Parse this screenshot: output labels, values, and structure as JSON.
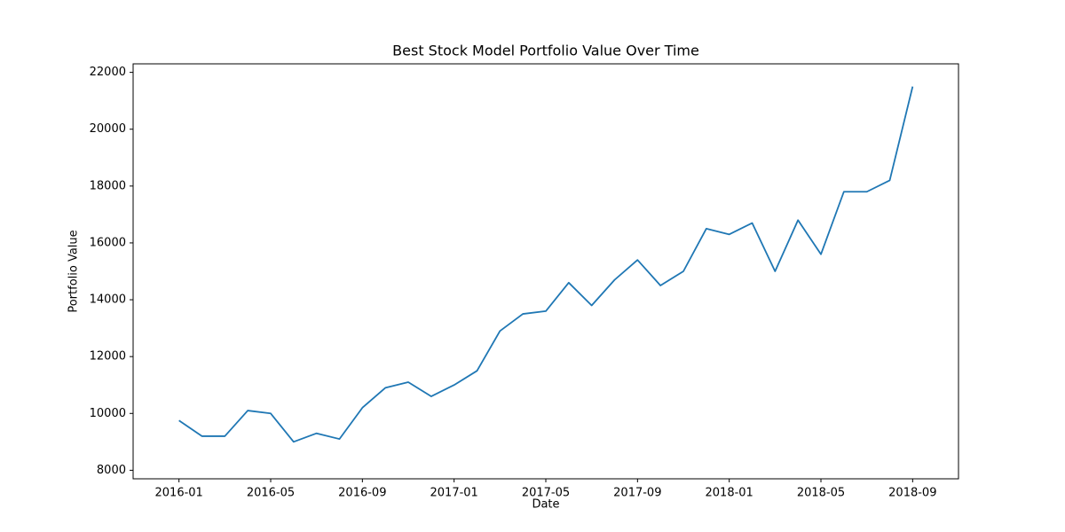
{
  "chart_data": {
    "type": "line",
    "title": "Best Stock Model Portfolio Value Over Time",
    "xlabel": "Date",
    "ylabel": "Portfolio Value",
    "x": [
      "2016-01",
      "2016-02",
      "2016-03",
      "2016-04",
      "2016-05",
      "2016-06",
      "2016-07",
      "2016-08",
      "2016-09",
      "2016-10",
      "2016-11",
      "2016-12",
      "2017-01",
      "2017-02",
      "2017-03",
      "2017-04",
      "2017-05",
      "2017-06",
      "2017-07",
      "2017-08",
      "2017-09",
      "2017-10",
      "2017-11",
      "2017-12",
      "2018-01",
      "2018-02",
      "2018-03",
      "2018-04",
      "2018-05",
      "2018-06",
      "2018-07",
      "2018-08",
      "2018-09"
    ],
    "values": [
      9750,
      9200,
      9200,
      10100,
      10000,
      9000,
      9300,
      9100,
      10200,
      10900,
      11100,
      10600,
      11000,
      11500,
      12900,
      13500,
      13600,
      14600,
      13800,
      14700,
      15400,
      14500,
      15000,
      16500,
      16300,
      16700,
      15000,
      16800,
      15600,
      17800,
      17800,
      18200,
      21500
    ],
    "color": "#1f77b4",
    "xlim": [
      "2015-11",
      "2018-11"
    ],
    "xticks": [
      "2016-01",
      "2016-05",
      "2016-09",
      "2017-01",
      "2017-05",
      "2017-09",
      "2018-01",
      "2018-05",
      "2018-09"
    ],
    "ylim": [
      7700,
      22300
    ],
    "yticks": [
      8000,
      10000,
      12000,
      14000,
      16000,
      18000,
      20000,
      22000
    ],
    "grid": false
  }
}
